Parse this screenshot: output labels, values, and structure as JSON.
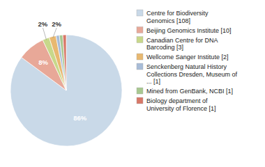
{
  "chart_data": {
    "type": "pie",
    "categories": [
      "Centre for Biodiversity\nGenomics [108]",
      "Beijing Genomics Institute [10]",
      "Canadian Centre for DNA\nBarcoding [3]",
      "Wellcome Sanger Institute [2]",
      "Senckenberg Natural History\nCollections Dresden, Museum of\n... [1]",
      "Mined from GenBank, NCBI [1]",
      "Biology department of\nUniversity of Florence [1]"
    ],
    "values": [
      86,
      8,
      2,
      2,
      1,
      1,
      1
    ],
    "value_labels": [
      "86%",
      "8%",
      "2%",
      "2%",
      null,
      null,
      null
    ],
    "data_labels": true,
    "colors": [
      "#c9d9e8",
      "#e8a898",
      "#c8d88a",
      "#e8b870",
      "#a8bcd8",
      "#a8c890",
      "#d87868"
    ],
    "legend": "right"
  }
}
